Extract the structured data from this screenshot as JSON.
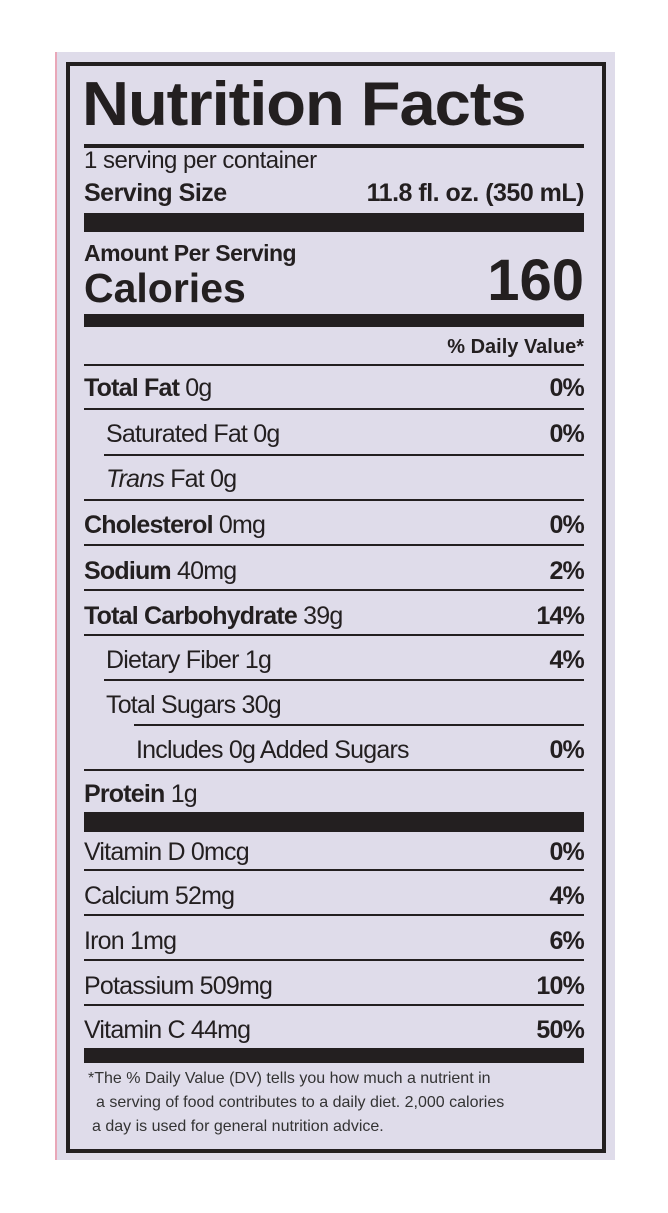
{
  "label": {
    "title": "Nutrition Facts",
    "servings_per_container": "1 serving per container",
    "serving_size_label": "Serving Size",
    "serving_size_value": "11.8 fl. oz. (350 mL)",
    "amount_per_serving": "Amount Per Serving",
    "calories_label": "Calories",
    "calories_value": "160",
    "dv_header": "% Daily Value*",
    "nutrients": [
      {
        "name": "Total Fat",
        "amount": "0g",
        "dv": "0%"
      },
      {
        "name": "Saturated Fat",
        "amount": "0g",
        "dv": "0%"
      },
      {
        "name": "Trans",
        "name_suffix": " Fat",
        "amount": "0g",
        "dv": ""
      },
      {
        "name": "Cholesterol",
        "amount": "0mg",
        "dv": "0%"
      },
      {
        "name": "Sodium",
        "amount": "40mg",
        "dv": "2%"
      },
      {
        "name": "Total Carbohydrate",
        "amount": "39g",
        "dv": "14%"
      },
      {
        "name": "Dietary Fiber",
        "amount": "1g",
        "dv": "4%"
      },
      {
        "name": "Total Sugars",
        "amount": "30g",
        "dv": ""
      },
      {
        "name": "Includes 0g Added Sugars",
        "amount": "",
        "dv": "0%"
      },
      {
        "name": "Protein",
        "amount": "1g",
        "dv": ""
      }
    ],
    "vitamins": [
      {
        "name": "Vitamin D",
        "amount": "0mcg",
        "dv": "0%"
      },
      {
        "name": "Calcium",
        "amount": "52mg",
        "dv": "4%"
      },
      {
        "name": "Iron",
        "amount": "1mg",
        "dv": "6%"
      },
      {
        "name": "Potassium",
        "amount": "509mg",
        "dv": "10%"
      },
      {
        "name": "Vitamin C",
        "amount": "44mg",
        "dv": "50%"
      }
    ],
    "footnote": [
      "*The % Daily Value (DV) tells you how much a nutrient in",
      "a serving of food contributes to a daily diet. 2,000 calories",
      "a day is used for general nutrition advice."
    ]
  }
}
